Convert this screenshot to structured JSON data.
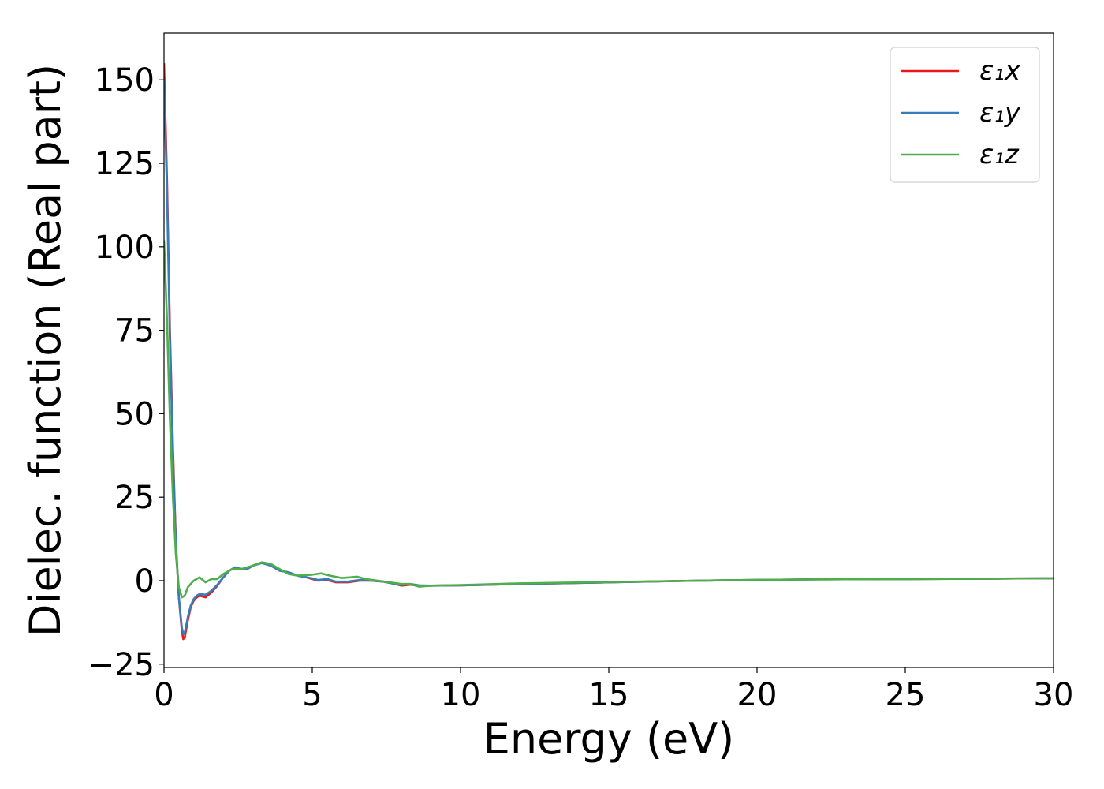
{
  "chart_data": {
    "type": "line",
    "xlabel": "Energy (eV)",
    "ylabel": "Dielec. function (Real part)",
    "xlim": [
      0,
      30
    ],
    "ylim": [
      -26,
      164
    ],
    "x_ticks": [
      0,
      5,
      10,
      15,
      20,
      25,
      30
    ],
    "y_ticks": [
      -25,
      0,
      25,
      50,
      75,
      100,
      125,
      150
    ],
    "x_tick_labels": [
      "0",
      "5",
      "10",
      "15",
      "20",
      "25",
      "30"
    ],
    "y_tick_labels": [
      "−25",
      "0",
      "25",
      "50",
      "75",
      "100",
      "125",
      "150"
    ],
    "grid": false,
    "legend_position": "top-right",
    "series": [
      {
        "name": "ε₁x",
        "color": "#e41a1c",
        "points": [
          [
            0,
            155
          ],
          [
            0.1,
            120
          ],
          [
            0.2,
            75
          ],
          [
            0.3,
            40
          ],
          [
            0.4,
            12
          ],
          [
            0.5,
            -5
          ],
          [
            0.6,
            -15
          ],
          [
            0.65,
            -17.5
          ],
          [
            0.7,
            -17
          ],
          [
            0.8,
            -12
          ],
          [
            0.9,
            -8
          ],
          [
            1.0,
            -6
          ],
          [
            1.1,
            -5
          ],
          [
            1.2,
            -4.5
          ],
          [
            1.4,
            -5
          ],
          [
            1.6,
            -3.5
          ],
          [
            1.8,
            -1.5
          ],
          [
            2.0,
            1
          ],
          [
            2.2,
            3
          ],
          [
            2.4,
            4
          ],
          [
            2.6,
            3.5
          ],
          [
            2.8,
            3.5
          ],
          [
            3.0,
            4.5
          ],
          [
            3.3,
            5.5
          ],
          [
            3.6,
            4.5
          ],
          [
            3.9,
            3
          ],
          [
            4.2,
            2.5
          ],
          [
            4.5,
            1.5
          ],
          [
            4.8,
            1
          ],
          [
            5.0,
            0.5
          ],
          [
            5.2,
            0
          ],
          [
            5.5,
            0.2
          ],
          [
            5.8,
            -0.5
          ],
          [
            6.2,
            -0.5
          ],
          [
            6.6,
            0
          ],
          [
            7.0,
            0
          ],
          [
            7.4,
            -0.3
          ],
          [
            7.8,
            -1
          ],
          [
            8.0,
            -1.5
          ],
          [
            8.3,
            -1.2
          ],
          [
            8.6,
            -1.5
          ],
          [
            9.0,
            -1.5
          ],
          [
            10,
            -1.4
          ],
          [
            12,
            -1
          ],
          [
            15,
            -0.5
          ],
          [
            18,
            0
          ],
          [
            20,
            0.2
          ],
          [
            22,
            0.4
          ],
          [
            25,
            0.5
          ],
          [
            28,
            0.6
          ],
          [
            30,
            0.7
          ]
        ]
      },
      {
        "name": "ε₁y",
        "color": "#377eb8",
        "points": [
          [
            0,
            150
          ],
          [
            0.1,
            116
          ],
          [
            0.2,
            72
          ],
          [
            0.3,
            38
          ],
          [
            0.4,
            11
          ],
          [
            0.5,
            -5
          ],
          [
            0.6,
            -14
          ],
          [
            0.65,
            -16
          ],
          [
            0.7,
            -15.5
          ],
          [
            0.8,
            -11
          ],
          [
            0.9,
            -7.5
          ],
          [
            1.0,
            -5.5
          ],
          [
            1.1,
            -4.5
          ],
          [
            1.2,
            -4
          ],
          [
            1.4,
            -4.2
          ],
          [
            1.6,
            -3
          ],
          [
            1.8,
            -1.2
          ],
          [
            2.0,
            1
          ],
          [
            2.2,
            3
          ],
          [
            2.4,
            4
          ],
          [
            2.6,
            3.5
          ],
          [
            2.8,
            3.5
          ],
          [
            3.0,
            4.5
          ],
          [
            3.3,
            5.3
          ],
          [
            3.6,
            4.5
          ],
          [
            3.9,
            3
          ],
          [
            4.2,
            2.5
          ],
          [
            4.5,
            1.5
          ],
          [
            4.8,
            1
          ],
          [
            5.0,
            0.7
          ],
          [
            5.2,
            0.2
          ],
          [
            5.5,
            0.5
          ],
          [
            5.8,
            -0.3
          ],
          [
            6.2,
            -0.3
          ],
          [
            6.6,
            0.2
          ],
          [
            7.0,
            0
          ],
          [
            7.4,
            -0.3
          ],
          [
            7.8,
            -1
          ],
          [
            8.0,
            -1.3
          ],
          [
            8.3,
            -1
          ],
          [
            8.6,
            -1.4
          ],
          [
            9.0,
            -1.5
          ],
          [
            10,
            -1.4
          ],
          [
            12,
            -1
          ],
          [
            15,
            -0.5
          ],
          [
            18,
            0
          ],
          [
            20,
            0.2
          ],
          [
            22,
            0.4
          ],
          [
            25,
            0.5
          ],
          [
            28,
            0.6
          ],
          [
            30,
            0.7
          ]
        ]
      },
      {
        "name": "ε₁z",
        "color": "#4daf4a",
        "points": [
          [
            0,
            102
          ],
          [
            0.1,
            78
          ],
          [
            0.2,
            48
          ],
          [
            0.3,
            25
          ],
          [
            0.4,
            8
          ],
          [
            0.5,
            -2
          ],
          [
            0.6,
            -5
          ],
          [
            0.7,
            -4.5
          ],
          [
            0.8,
            -2
          ],
          [
            0.9,
            -1
          ],
          [
            1.0,
            0
          ],
          [
            1.2,
            1
          ],
          [
            1.4,
            -0.5
          ],
          [
            1.6,
            0.5
          ],
          [
            1.8,
            0.5
          ],
          [
            2.0,
            2
          ],
          [
            2.3,
            3.5
          ],
          [
            2.6,
            3.5
          ],
          [
            3.0,
            4.5
          ],
          [
            3.3,
            5.5
          ],
          [
            3.6,
            5
          ],
          [
            3.9,
            3.5
          ],
          [
            4.2,
            2
          ],
          [
            4.5,
            1.5
          ],
          [
            5.0,
            1.8
          ],
          [
            5.3,
            2.2
          ],
          [
            5.6,
            1.5
          ],
          [
            6.0,
            0.8
          ],
          [
            6.3,
            1
          ],
          [
            6.5,
            1.2
          ],
          [
            6.8,
            0.5
          ],
          [
            7.2,
            0
          ],
          [
            7.6,
            -0.5
          ],
          [
            8.0,
            -1
          ],
          [
            8.3,
            -1
          ],
          [
            8.6,
            -1.8
          ],
          [
            9.0,
            -1.5
          ],
          [
            10,
            -1.3
          ],
          [
            12,
            -0.8
          ],
          [
            15,
            -0.4
          ],
          [
            18,
            0
          ],
          [
            20,
            0.2
          ],
          [
            22,
            0.4
          ],
          [
            25,
            0.5
          ],
          [
            28,
            0.6
          ],
          [
            30,
            0.7
          ]
        ]
      }
    ]
  }
}
